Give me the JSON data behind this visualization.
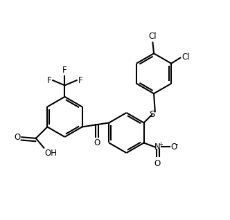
{
  "bg_color": "#ffffff",
  "line_color": "#000000",
  "line_width": 1.5,
  "font_size": 8.5,
  "figsize": [
    3.32,
    3.18
  ],
  "dpi": 100,
  "xlim": [
    0,
    10
  ],
  "ylim": [
    0,
    9.6
  ]
}
